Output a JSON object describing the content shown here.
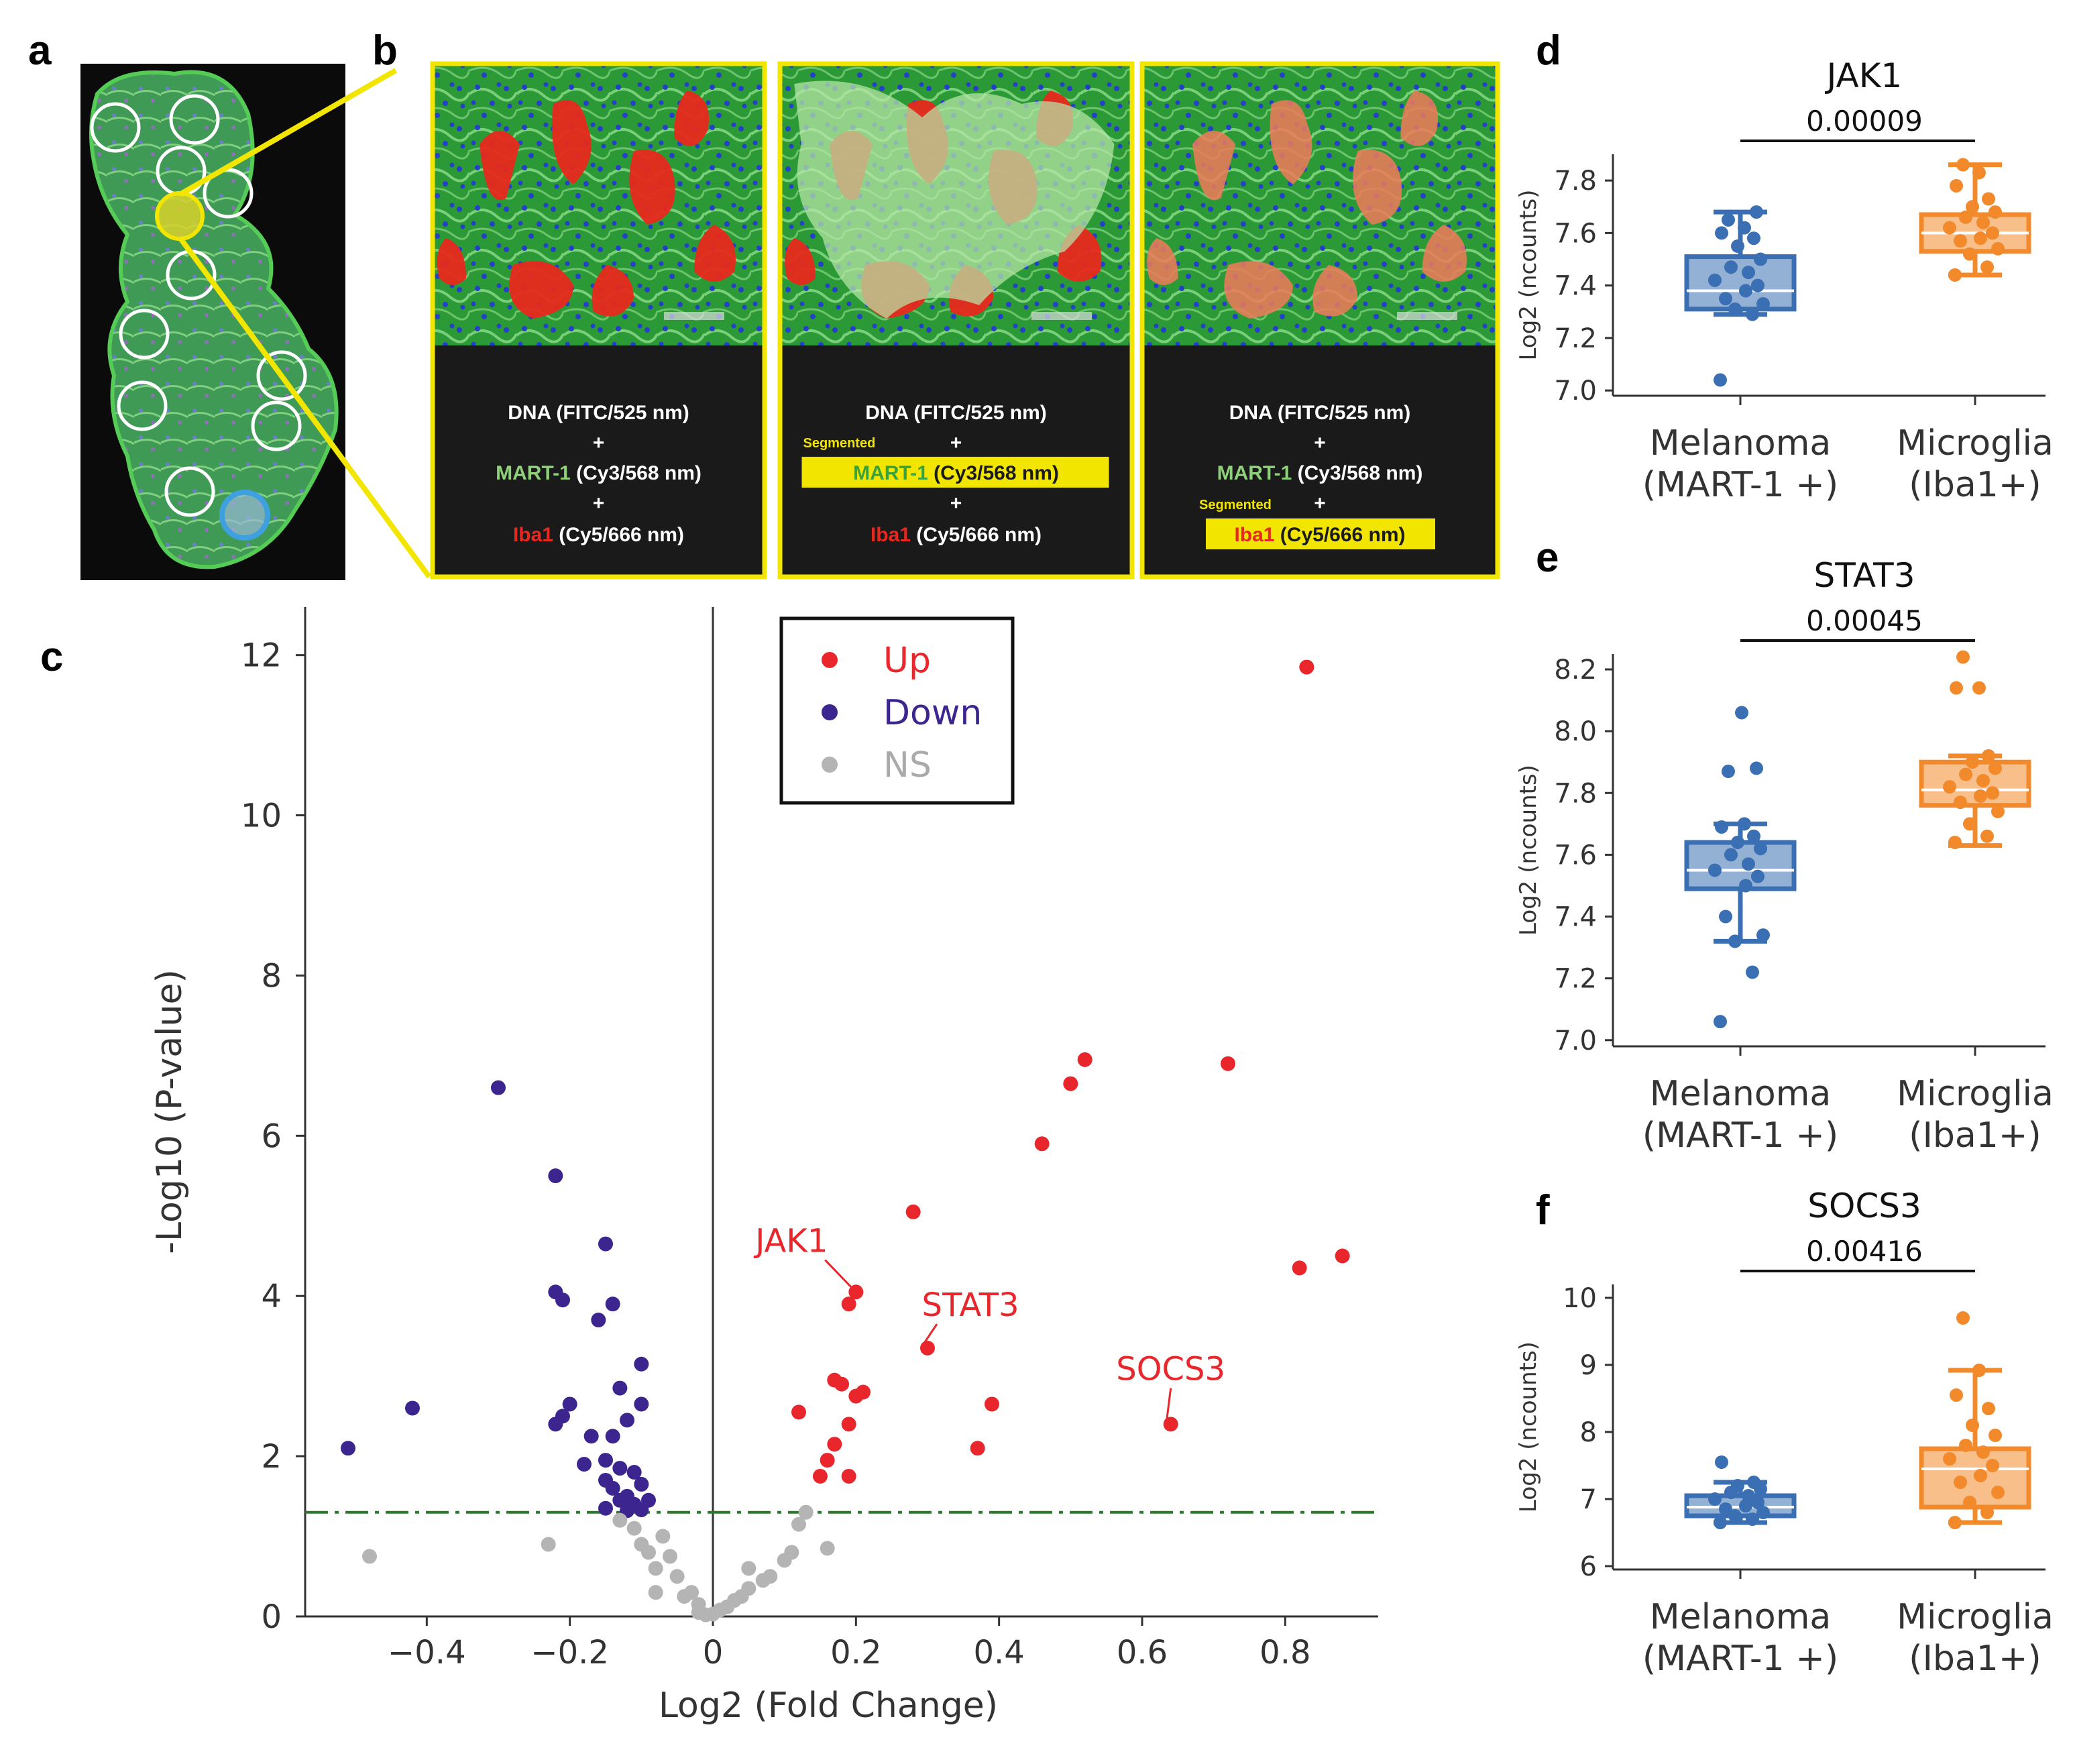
{
  "panels": {
    "a": "a",
    "b": "b",
    "c": "c",
    "d": "d",
    "e": "e",
    "f": "f"
  },
  "panel_b": {
    "plus": "+",
    "segmented": "Segmented",
    "tiles": [
      {
        "line1_a": "DNA",
        "line1_b": " (FITC/525 nm)",
        "line2_a": "MART-1",
        "line2_b": " (Cy3/568 nm)",
        "line3_a": "Iba1",
        "line3_b": " (Cy5/666 nm)",
        "seg_marker": "none"
      },
      {
        "line1_a": "DNA",
        "line1_b": " (FITC/525 nm)",
        "line2_a": "MART-1",
        "line2_b": " (Cy3/568 nm)",
        "line3_a": "Iba1",
        "line3_b": " (Cy5/666 nm)",
        "seg_marker": "MART-1"
      },
      {
        "line1_a": "DNA",
        "line1_b": " (FITC/525 nm)",
        "line2_a": "MART-1",
        "line2_b": " (Cy3/568 nm)",
        "line3_a": "Iba1",
        "line3_b": " (Cy5/666 nm)",
        "seg_marker": "Iba1"
      }
    ]
  },
  "colors": {
    "up": "#e8262b",
    "down": "#3d2590",
    "ns": "#b4b4b4",
    "threshold": "#2a7a2a",
    "melanoma": "#3b6fb3",
    "microglia": "#f28a2c",
    "selection": "#f2e600"
  },
  "chart_data": [
    {
      "type": "scatter",
      "name": "volcano",
      "xlabel": "Log2 (Fold Change)",
      "ylabel": "-Log10 (P-value)",
      "xlim": [
        -0.57,
        0.93
      ],
      "ylim": [
        0,
        12.6
      ],
      "xticks": [
        -0.4,
        -0.2,
        0,
        0.2,
        0.4,
        0.6,
        0.8
      ],
      "xtick_labels": [
        "−0.4",
        "−0.2",
        "0",
        "0.2",
        "0.4",
        "0.6",
        "0.8"
      ],
      "yticks": [
        0,
        2,
        4,
        6,
        8,
        10,
        12
      ],
      "ytick_labels": [
        "0",
        "2",
        "4",
        "6",
        "8",
        "10",
        "12"
      ],
      "threshold_y": 1.3,
      "legend": {
        "position": "top-center",
        "entries": [
          "Up",
          "Down",
          "NS"
        ]
      },
      "annotations": [
        {
          "label": "JAK1",
          "x": 0.2,
          "y": 4.05,
          "text_x": 0.11,
          "text_y": 4.55
        },
        {
          "label": "STAT3",
          "x": 0.3,
          "y": 3.35,
          "text_x": 0.36,
          "text_y": 3.75
        },
        {
          "label": "SOCS3",
          "x": 0.64,
          "y": 2.4,
          "text_x": 0.64,
          "text_y": 2.95
        }
      ],
      "series": [
        {
          "name": "Up",
          "points": [
            [
              0.83,
              11.85
            ],
            [
              0.52,
              6.95
            ],
            [
              0.72,
              6.9
            ],
            [
              0.5,
              6.65
            ],
            [
              0.46,
              5.9
            ],
            [
              0.28,
              5.05
            ],
            [
              0.82,
              4.35
            ],
            [
              0.88,
              4.5
            ],
            [
              0.2,
              4.05
            ],
            [
              0.19,
              3.9
            ],
            [
              0.3,
              3.35
            ],
            [
              0.17,
              2.95
            ],
            [
              0.18,
              2.9
            ],
            [
              0.21,
              2.8
            ],
            [
              0.2,
              2.75
            ],
            [
              0.12,
              2.55
            ],
            [
              0.39,
              2.65
            ],
            [
              0.64,
              2.4
            ],
            [
              0.19,
              2.4
            ],
            [
              0.17,
              2.15
            ],
            [
              0.37,
              2.1
            ],
            [
              0.16,
              1.95
            ],
            [
              0.15,
              1.75
            ],
            [
              0.19,
              1.75
            ]
          ]
        },
        {
          "name": "Down",
          "points": [
            [
              -0.3,
              6.6
            ],
            [
              -0.22,
              5.5
            ],
            [
              -0.15,
              4.65
            ],
            [
              -0.22,
              4.05
            ],
            [
              -0.21,
              3.95
            ],
            [
              -0.14,
              3.9
            ],
            [
              -0.16,
              3.7
            ],
            [
              -0.1,
              3.15
            ],
            [
              -0.13,
              2.85
            ],
            [
              -0.42,
              2.6
            ],
            [
              -0.2,
              2.65
            ],
            [
              -0.1,
              2.65
            ],
            [
              -0.21,
              2.5
            ],
            [
              -0.12,
              2.45
            ],
            [
              -0.22,
              2.4
            ],
            [
              -0.17,
              2.25
            ],
            [
              -0.14,
              2.25
            ],
            [
              -0.51,
              2.1
            ],
            [
              -0.15,
              1.95
            ],
            [
              -0.18,
              1.9
            ],
            [
              -0.13,
              1.85
            ],
            [
              -0.11,
              1.8
            ],
            [
              -0.15,
              1.7
            ],
            [
              -0.1,
              1.65
            ],
            [
              -0.14,
              1.6
            ],
            [
              -0.12,
              1.5
            ],
            [
              -0.09,
              1.45
            ],
            [
              -0.13,
              1.45
            ],
            [
              -0.11,
              1.4
            ],
            [
              -0.15,
              1.35
            ],
            [
              -0.1,
              1.33
            ],
            [
              -0.12,
              1.32
            ]
          ]
        },
        {
          "name": "NS",
          "points": [
            [
              -0.48,
              0.75
            ],
            [
              -0.23,
              0.9
            ],
            [
              -0.13,
              1.2
            ],
            [
              -0.11,
              1.1
            ],
            [
              -0.1,
              0.9
            ],
            [
              -0.09,
              0.8
            ],
            [
              -0.07,
              1.0
            ],
            [
              -0.06,
              0.75
            ],
            [
              -0.08,
              0.6
            ],
            [
              -0.05,
              0.5
            ],
            [
              -0.08,
              0.3
            ],
            [
              -0.03,
              0.3
            ],
            [
              -0.04,
              0.25
            ],
            [
              -0.02,
              0.15
            ],
            [
              -0.02,
              0.05
            ],
            [
              -0.01,
              0.02
            ],
            [
              0.0,
              0.03
            ],
            [
              0.01,
              0.08
            ],
            [
              0.02,
              0.12
            ],
            [
              0.03,
              0.2
            ],
            [
              0.04,
              0.25
            ],
            [
              0.05,
              0.35
            ],
            [
              0.05,
              0.6
            ],
            [
              0.07,
              0.45
            ],
            [
              0.08,
              0.5
            ],
            [
              0.1,
              0.7
            ],
            [
              0.11,
              0.8
            ],
            [
              0.12,
              1.15
            ],
            [
              0.13,
              1.3
            ],
            [
              0.16,
              0.85
            ]
          ]
        }
      ]
    },
    {
      "type": "box",
      "name": "jak1",
      "title": "JAK1",
      "pvalue": "0.00009",
      "ylabel": "Log2 (ncounts)",
      "ylim": [
        6.98,
        7.9
      ],
      "yticks": [
        7.0,
        7.2,
        7.4,
        7.6,
        7.8
      ],
      "ytick_labels": [
        "7.0",
        "7.2",
        "7.4",
        "7.6",
        "7.8"
      ],
      "groups": [
        {
          "line1": "Melanoma",
          "line2": "(MART-1 +)",
          "q1": 7.31,
          "median": 7.38,
          "q3": 7.51,
          "whisker_low": 7.29,
          "whisker_high": 7.68,
          "points": [
            7.04,
            7.29,
            7.31,
            7.33,
            7.35,
            7.38,
            7.4,
            7.42,
            7.45,
            7.47,
            7.5,
            7.55,
            7.58,
            7.6,
            7.62,
            7.65,
            7.68
          ]
        },
        {
          "line1": "Microglia",
          "line2": "(Iba1+)",
          "q1": 7.53,
          "median": 7.6,
          "q3": 7.67,
          "whisker_low": 7.44,
          "whisker_high": 7.86,
          "points": [
            7.44,
            7.47,
            7.52,
            7.54,
            7.57,
            7.58,
            7.6,
            7.62,
            7.64,
            7.66,
            7.68,
            7.7,
            7.73,
            7.78,
            7.83,
            7.86
          ]
        }
      ]
    },
    {
      "type": "box",
      "name": "stat3",
      "title": "STAT3",
      "pvalue": "0.00045",
      "ylabel": "Log2 (ncounts)",
      "ylim": [
        6.98,
        8.25
      ],
      "yticks": [
        7.0,
        7.2,
        7.4,
        7.6,
        7.8,
        8.0,
        8.2
      ],
      "ytick_labels": [
        "7.0",
        "7.2",
        "7.4",
        "7.6",
        "7.8",
        "8.0",
        "8.2"
      ],
      "groups": [
        {
          "line1": "Melanoma",
          "line2": "(MART-1 +)",
          "q1": 7.49,
          "median": 7.55,
          "q3": 7.64,
          "whisker_low": 7.32,
          "whisker_high": 7.7,
          "points": [
            7.06,
            7.22,
            7.32,
            7.34,
            7.4,
            7.5,
            7.53,
            7.55,
            7.57,
            7.6,
            7.62,
            7.64,
            7.66,
            7.69,
            7.7,
            7.87,
            7.88,
            8.06
          ]
        },
        {
          "line1": "Microglia",
          "line2": "(Iba1+)",
          "q1": 7.76,
          "median": 7.81,
          "q3": 7.9,
          "whisker_low": 7.63,
          "whisker_high": 7.92,
          "points": [
            7.64,
            7.66,
            7.7,
            7.74,
            7.77,
            7.79,
            7.8,
            7.82,
            7.84,
            7.86,
            7.88,
            7.9,
            7.92,
            8.14,
            8.14,
            8.24
          ]
        }
      ]
    },
    {
      "type": "box",
      "name": "socs3",
      "title": "SOCS3",
      "pvalue": "0.00416",
      "ylabel": "Log2 (ncounts)",
      "ylim": [
        5.95,
        10.2
      ],
      "yticks": [
        6,
        7,
        8,
        9,
        10
      ],
      "ytick_labels": [
        "6",
        "7",
        "8",
        "9",
        "10"
      ],
      "groups": [
        {
          "line1": "Melanoma",
          "line2": "(MART-1 +)",
          "q1": 6.75,
          "median": 6.88,
          "q3": 7.05,
          "whisker_low": 6.65,
          "whisker_high": 7.25,
          "points": [
            6.65,
            6.7,
            6.75,
            6.8,
            6.85,
            6.9,
            6.95,
            7.0,
            7.05,
            7.1,
            7.15,
            7.2,
            7.25,
            7.55
          ]
        },
        {
          "line1": "Microglia",
          "line2": "(Iba1+)",
          "q1": 6.88,
          "median": 7.45,
          "q3": 7.75,
          "whisker_low": 6.65,
          "whisker_high": 8.92,
          "points": [
            6.65,
            6.8,
            6.95,
            7.1,
            7.25,
            7.35,
            7.5,
            7.6,
            7.7,
            7.8,
            7.95,
            8.1,
            8.35,
            8.55,
            8.92,
            9.7
          ]
        }
      ]
    }
  ]
}
